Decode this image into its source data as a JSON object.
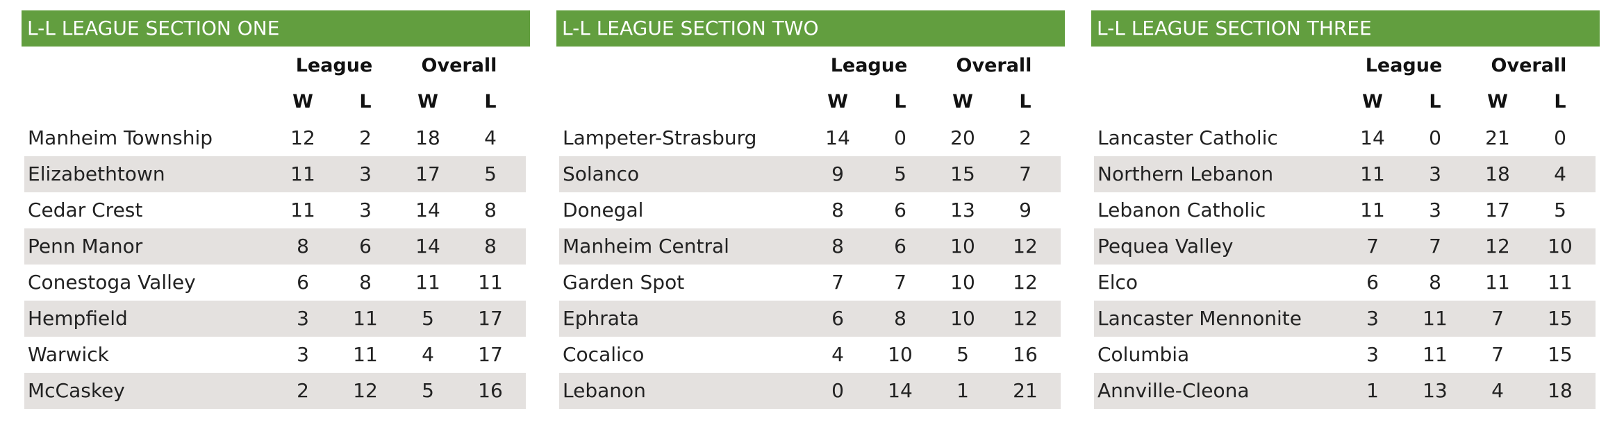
{
  "headers": {
    "league": "League",
    "overall": "Overall",
    "w": "W",
    "l": "L"
  },
  "colors": {
    "title_bar": "#629e3f",
    "stripe": "#e4e1df"
  },
  "sections": [
    {
      "title": "L-L LEAGUE SECTION ONE",
      "teams": [
        {
          "name": "Manheim Township",
          "league_w": "12",
          "league_l": "2",
          "overall_w": "18",
          "overall_l": "4"
        },
        {
          "name": "Elizabethtown",
          "league_w": "11",
          "league_l": "3",
          "overall_w": "17",
          "overall_l": "5"
        },
        {
          "name": "Cedar Crest",
          "league_w": "11",
          "league_l": "3",
          "overall_w": "14",
          "overall_l": "8"
        },
        {
          "name": "Penn Manor",
          "league_w": "8",
          "league_l": "6",
          "overall_w": "14",
          "overall_l": "8"
        },
        {
          "name": "Conestoga Valley",
          "league_w": "6",
          "league_l": "8",
          "overall_w": "11",
          "overall_l": "11"
        },
        {
          "name": "Hempfield",
          "league_w": "3",
          "league_l": "11",
          "overall_w": "5",
          "overall_l": "17"
        },
        {
          "name": "Warwick",
          "league_w": "3",
          "league_l": "11",
          "overall_w": "4",
          "overall_l": "17"
        },
        {
          "name": "McCaskey",
          "league_w": "2",
          "league_l": "12",
          "overall_w": "5",
          "overall_l": "16"
        }
      ]
    },
    {
      "title": "L-L LEAGUE SECTION TWO",
      "teams": [
        {
          "name": "Lampeter-Strasburg",
          "league_w": "14",
          "league_l": "0",
          "overall_w": "20",
          "overall_l": "2"
        },
        {
          "name": "Solanco",
          "league_w": "9",
          "league_l": "5",
          "overall_w": "15",
          "overall_l": "7"
        },
        {
          "name": "Donegal",
          "league_w": "8",
          "league_l": "6",
          "overall_w": "13",
          "overall_l": "9"
        },
        {
          "name": "Manheim Central",
          "league_w": "8",
          "league_l": "6",
          "overall_w": "10",
          "overall_l": "12"
        },
        {
          "name": "Garden Spot",
          "league_w": "7",
          "league_l": "7",
          "overall_w": "10",
          "overall_l": "12"
        },
        {
          "name": "Ephrata",
          "league_w": "6",
          "league_l": "8",
          "overall_w": "10",
          "overall_l": "12"
        },
        {
          "name": "Cocalico",
          "league_w": "4",
          "league_l": "10",
          "overall_w": "5",
          "overall_l": "16"
        },
        {
          "name": "Lebanon",
          "league_w": "0",
          "league_l": "14",
          "overall_w": "1",
          "overall_l": "21"
        }
      ]
    },
    {
      "title": "L-L LEAGUE SECTION THREE",
      "teams": [
        {
          "name": "Lancaster Catholic",
          "league_w": "14",
          "league_l": "0",
          "overall_w": "21",
          "overall_l": "0"
        },
        {
          "name": "Northern Lebanon",
          "league_w": "11",
          "league_l": "3",
          "overall_w": "18",
          "overall_l": "4"
        },
        {
          "name": "Lebanon Catholic",
          "league_w": "11",
          "league_l": "3",
          "overall_w": "17",
          "overall_l": "5"
        },
        {
          "name": "Pequea Valley",
          "league_w": "7",
          "league_l": "7",
          "overall_w": "12",
          "overall_l": "10"
        },
        {
          "name": "Elco",
          "league_w": "6",
          "league_l": "8",
          "overall_w": "11",
          "overall_l": "11"
        },
        {
          "name": "Lancaster Mennonite",
          "league_w": "3",
          "league_l": "11",
          "overall_w": "7",
          "overall_l": "15"
        },
        {
          "name": "Columbia",
          "league_w": "3",
          "league_l": "11",
          "overall_w": "7",
          "overall_l": "15"
        },
        {
          "name": "Annville-Cleona",
          "league_w": "1",
          "league_l": "13",
          "overall_w": "4",
          "overall_l": "18"
        }
      ]
    }
  ]
}
